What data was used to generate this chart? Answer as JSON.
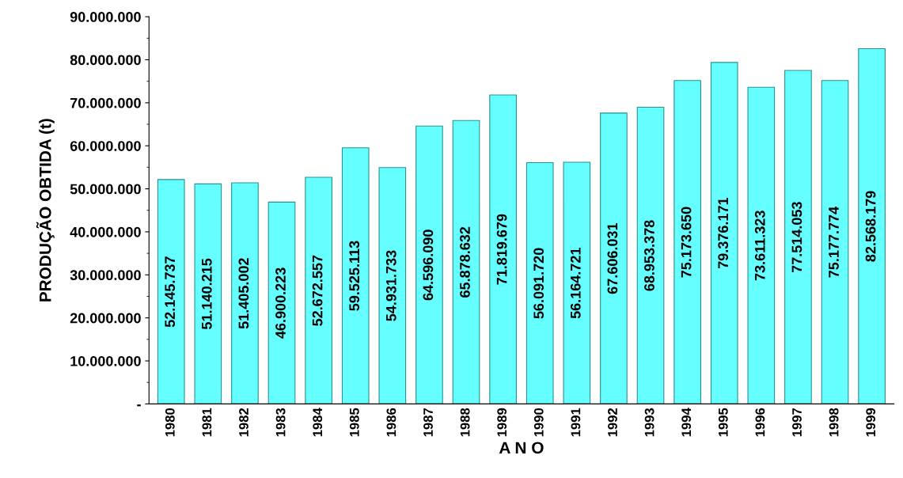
{
  "chart_data": {
    "type": "bar",
    "xlabel": "A N O",
    "ylabel": "PRODUÇÃO OBTIDA (t)",
    "categories": [
      "1980",
      "1981",
      "1982",
      "1983",
      "1984",
      "1985",
      "1986",
      "1987",
      "1988",
      "1989",
      "1990",
      "1991",
      "1992",
      "1993",
      "1994",
      "1995",
      "1996",
      "1997",
      "1998",
      "1999"
    ],
    "values": [
      52145737,
      51140215,
      51405002,
      46900223,
      52672557,
      59525113,
      54931733,
      64596090,
      65878632,
      71819679,
      56091720,
      56164721,
      67606031,
      68953378,
      75173650,
      79376171,
      73611323,
      77514053,
      75177774,
      82568179
    ],
    "value_labels": [
      "52.145.737",
      "51.140.215",
      "51.405.002",
      "46.900.223",
      "52.672.557",
      "59.525.113",
      "54.931.733",
      "64.596.090",
      "65.878.632",
      "71.819.679",
      "56.091.720",
      "56.164.721",
      "67.606.031",
      "68.953.378",
      "75.173.650",
      "79.376.171",
      "73.611.323",
      "77.514.053",
      "75.177.774",
      "82.568.179"
    ],
    "color": "#66ffff",
    "ylim": [
      0,
      90000000
    ],
    "yticks": [
      {
        "value": 0,
        "label": "-"
      },
      {
        "value": 10000000,
        "label": "10.000.000"
      },
      {
        "value": 20000000,
        "label": "20.000.000"
      },
      {
        "value": 30000000,
        "label": "30.000.000"
      },
      {
        "value": 40000000,
        "label": "40.000.000"
      },
      {
        "value": 50000000,
        "label": "50.000.000"
      },
      {
        "value": 60000000,
        "label": "60.000.000"
      },
      {
        "value": 70000000,
        "label": "70.000.000"
      },
      {
        "value": 80000000,
        "label": "80.000.000"
      },
      {
        "value": 90000000,
        "label": "90.000.000"
      }
    ],
    "grid": false,
    "legend": false
  }
}
